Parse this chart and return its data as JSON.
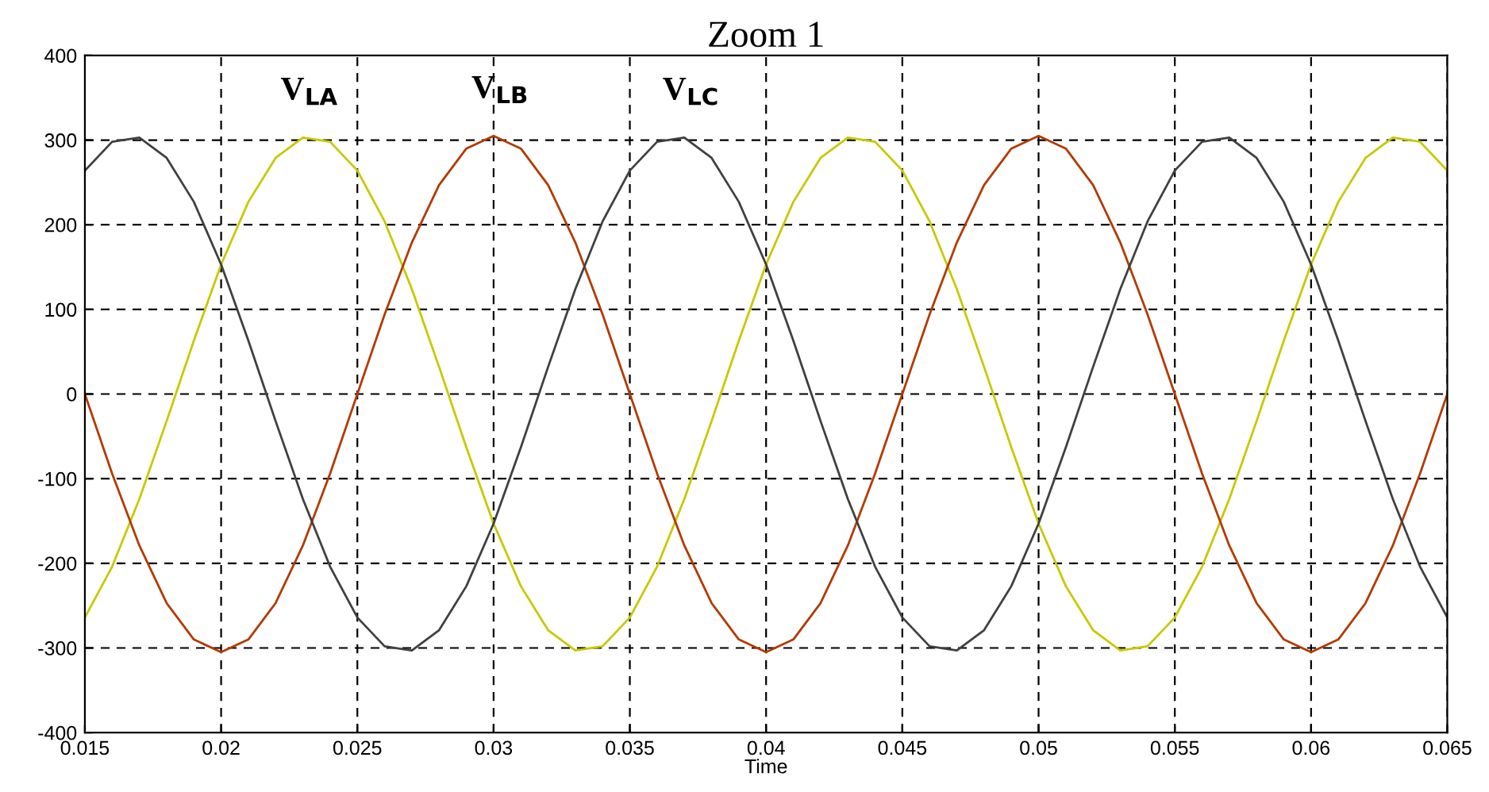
{
  "chart_data": {
    "type": "line",
    "title": "Zoom 1",
    "xlabel": "Time",
    "x": [
      0.015,
      0.016,
      0.017,
      0.018,
      0.019,
      0.02,
      0.021,
      0.022,
      0.023,
      0.024,
      0.025,
      0.026,
      0.027,
      0.028,
      0.029,
      0.03,
      0.031,
      0.032,
      0.033,
      0.034,
      0.035,
      0.036,
      0.037,
      0.038,
      0.039,
      0.04,
      0.041,
      0.042,
      0.043,
      0.044,
      0.045,
      0.046,
      0.047,
      0.048,
      0.049,
      0.05,
      0.051,
      0.052,
      0.053,
      0.054,
      0.055,
      0.056,
      0.057,
      0.058,
      0.059,
      0.06,
      0.061,
      0.062,
      0.063,
      0.064,
      0.065
    ],
    "series": [
      {
        "name": "V$_{LA}$",
        "color": "#c8c800",
        "values": [
          -264,
          -204,
          -124,
          -32,
          63,
          153,
          227,
          279,
          303,
          298,
          264,
          204,
          124,
          32,
          -63,
          -153,
          -227,
          -279,
          -303,
          -298,
          -264,
          -204,
          -124,
          -32,
          63,
          153,
          227,
          279,
          303,
          298,
          264,
          204,
          124,
          32,
          -63,
          -153,
          -227,
          -279,
          -303,
          -298,
          -264,
          -204,
          -124,
          -32,
          63,
          153,
          227,
          279,
          303,
          298,
          264
        ]
      },
      {
        "name": "V$_{LB}$",
        "color": "#b33a00",
        "values": [
          0,
          -94,
          -179,
          -247,
          -290,
          -305,
          -290,
          -247,
          -179,
          -94,
          0,
          94,
          179,
          247,
          290,
          305,
          290,
          247,
          179,
          94,
          0,
          -94,
          -179,
          -247,
          -290,
          -305,
          -290,
          -247,
          -179,
          -94,
          0,
          94,
          179,
          247,
          290,
          305,
          290,
          247,
          179,
          94,
          0,
          -94,
          -179,
          -247,
          -290,
          -305,
          -290,
          -247,
          -179,
          -94,
          0
        ]
      },
      {
        "name": "V$_{LC}$",
        "color": "#404040",
        "values": [
          264,
          298,
          303,
          279,
          227,
          153,
          63,
          -32,
          -124,
          -204,
          -264,
          -298,
          -303,
          -279,
          -227,
          -153,
          -63,
          32,
          124,
          204,
          264,
          298,
          303,
          279,
          227,
          153,
          63,
          -32,
          -124,
          -204,
          -264,
          -298,
          -303,
          -279,
          -227,
          -153,
          -63,
          32,
          124,
          204,
          264,
          298,
          303,
          279,
          227,
          153,
          63,
          -32,
          -124,
          -204,
          -264
        ]
      }
    ],
    "xlim": [
      0.015,
      0.065
    ],
    "xticks": [
      0.015,
      0.02,
      0.025,
      0.03,
      0.035,
      0.04,
      0.045,
      0.05,
      0.055,
      0.06,
      0.065
    ],
    "ylim": [
      -400,
      400
    ],
    "yticks": [
      -400,
      -300,
      -200,
      -100,
      0,
      100,
      200,
      300,
      400
    ],
    "grid": true,
    "line_style": "solid",
    "legend": false
  }
}
